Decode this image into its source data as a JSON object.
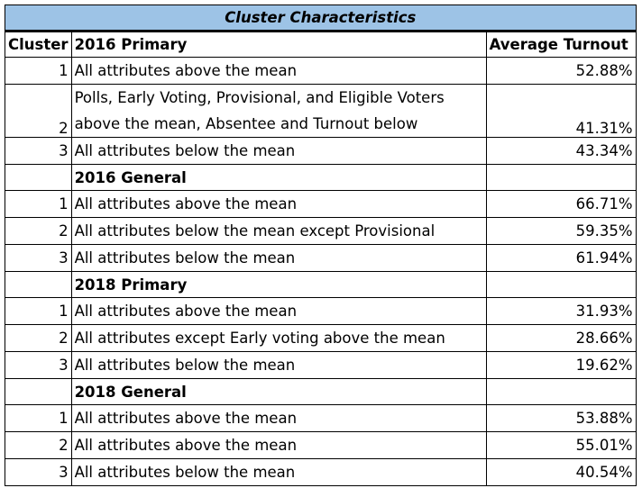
{
  "title": "Cluster Characteristics",
  "headers": {
    "cluster": "Cluster",
    "first_section": "2016 Primary",
    "turnout": "Average Turnout"
  },
  "sections": [
    {
      "name": "2016 Primary",
      "rows": [
        {
          "cluster": "1",
          "desc": "All attributes above the mean",
          "turnout": "52.88%"
        },
        {
          "cluster": "2",
          "desc_line1": "Polls, Early Voting, Provisional, and Eligible Voters",
          "desc_line2": "above the mean, Absentee and Turnout below",
          "turnout": "41.31%"
        },
        {
          "cluster": "3",
          "desc": "All attributes below the mean",
          "turnout": "43.34%"
        }
      ]
    },
    {
      "name": "2016 General",
      "rows": [
        {
          "cluster": "1",
          "desc": "All attributes above the mean",
          "turnout": "66.71%"
        },
        {
          "cluster": "2",
          "desc": "All attributes below the mean except Provisional",
          "turnout": "59.35%"
        },
        {
          "cluster": "3",
          "desc": "All attributes below the mean",
          "turnout": "61.94%"
        }
      ]
    },
    {
      "name": "2018 Primary",
      "rows": [
        {
          "cluster": "1",
          "desc": "All attributes above the mean",
          "turnout": "31.93%"
        },
        {
          "cluster": "2",
          "desc": "All attributes except Early voting above the mean",
          "turnout": "28.66%"
        },
        {
          "cluster": "3",
          "desc": "All attributes below the mean",
          "turnout": "19.62%"
        }
      ]
    },
    {
      "name": "2018 General",
      "rows": [
        {
          "cluster": "1",
          "desc": "All attributes above the mean",
          "turnout": "53.88%"
        },
        {
          "cluster": "2",
          "desc": "All attributes above the mean",
          "turnout": "55.01%"
        },
        {
          "cluster": "3",
          "desc": "All attributes below the mean",
          "turnout": "40.54%"
        }
      ]
    }
  ],
  "colors": {
    "title_fill": "#9dc3e6",
    "border": "#000000"
  }
}
